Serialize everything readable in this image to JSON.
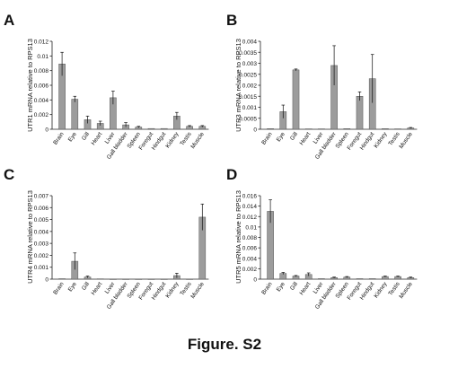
{
  "figure": {
    "caption": "Figure. S2"
  },
  "chart_data": [
    {
      "panel": "A",
      "type": "bar",
      "ylabel": "UTR1 mRNA relative to RPS13",
      "yticks": [
        "0",
        "0.002",
        "0.004",
        "0.006",
        "0.008",
        "0.01",
        "0.012"
      ],
      "ylim": [
        0,
        0.012
      ],
      "categories": [
        "Brain",
        "Eye",
        "Gill",
        "Heart",
        "Liver",
        "Gall bladder",
        "Spleen",
        "Foregut",
        "Hindgut",
        "Kidney",
        "Testis",
        "Muscle"
      ],
      "values": [
        0.0089,
        0.0041,
        0.0013,
        0.0008,
        0.0043,
        0.0006,
        0.0003,
        0.0001,
        0.0001,
        0.0018,
        0.0004,
        0.0004
      ],
      "errors": [
        0.0016,
        0.0004,
        0.0005,
        0.0003,
        0.0009,
        0.0003,
        0.0001,
        0.0,
        0.0,
        0.0005,
        0.0001,
        0.0001
      ]
    },
    {
      "panel": "B",
      "type": "bar",
      "ylabel": "UTR3 mRNA relative to RPS13",
      "yticks": [
        "0",
        "0.0005",
        "0.001",
        "0.0015",
        "0.002",
        "0.0025",
        "0.003",
        "0.0035",
        "0.004"
      ],
      "ylim": [
        0,
        0.004
      ],
      "categories": [
        "Brain",
        "Eye",
        "Gill",
        "Heart",
        "Liver",
        "Gall bladder",
        "Spleen",
        "Foregut",
        "Hindgut",
        "Kidney",
        "Testis",
        "Muscle"
      ],
      "values": [
        3e-05,
        0.0008,
        0.0027,
        2e-05,
        2e-05,
        0.0029,
        3e-05,
        0.0015,
        0.0023,
        3e-05,
        2e-05,
        6e-05
      ],
      "errors": [
        0.0,
        0.0003,
        4e-05,
        0.0,
        0.0,
        0.0009,
        0.0,
        0.0002,
        0.0011,
        0.0,
        0.0,
        2e-05
      ]
    },
    {
      "panel": "C",
      "type": "bar",
      "ylabel": "UTR4 mRNA relative to RPS13",
      "yticks": [
        "0",
        "0.001",
        "0.002",
        "0.003",
        "0.004",
        "0.005",
        "0.006",
        "0.007"
      ],
      "ylim": [
        0,
        0.007
      ],
      "categories": [
        "Brain",
        "Eye",
        "Gill",
        "Heart",
        "Liver",
        "Gall bladder",
        "Spleen",
        "Foregut",
        "Hindgut",
        "Kidney",
        "Testis",
        "Muscle"
      ],
      "values": [
        4e-05,
        0.0015,
        0.00018,
        3e-05,
        1e-05,
        1e-05,
        1e-05,
        1e-05,
        1e-05,
        0.0003,
        1e-05,
        0.0052
      ],
      "errors": [
        0.0,
        0.0007,
        8e-05,
        0.0,
        0.0,
        0.0,
        0.0,
        0.0,
        0.0,
        0.0002,
        0.0,
        0.0011
      ]
    },
    {
      "panel": "D",
      "type": "bar",
      "ylabel": "UTR5 mRNA relative to RPS13",
      "yticks": [
        "0",
        "0.002",
        "0.004",
        "0.006",
        "0.008",
        "0.01",
        "0.012",
        "0.014",
        "0.016"
      ],
      "ylim": [
        0,
        0.016
      ],
      "categories": [
        "Brain",
        "Eye",
        "Gill",
        "Heart",
        "Liver",
        "Gall bladder",
        "Spleen",
        "Foregut",
        "Hindgut",
        "Kidney",
        "Testis",
        "Muscle"
      ],
      "values": [
        0.013,
        0.0011,
        0.0006,
        0.0009,
        0.0001,
        0.0003,
        0.0004,
        0.0001,
        0.0001,
        0.0005,
        0.0005,
        0.0003
      ],
      "errors": [
        0.0022,
        0.0002,
        0.0001,
        0.0003,
        0.0,
        0.0001,
        0.0001,
        0.0,
        0.0,
        0.0001,
        0.0001,
        0.0001
      ]
    }
  ]
}
